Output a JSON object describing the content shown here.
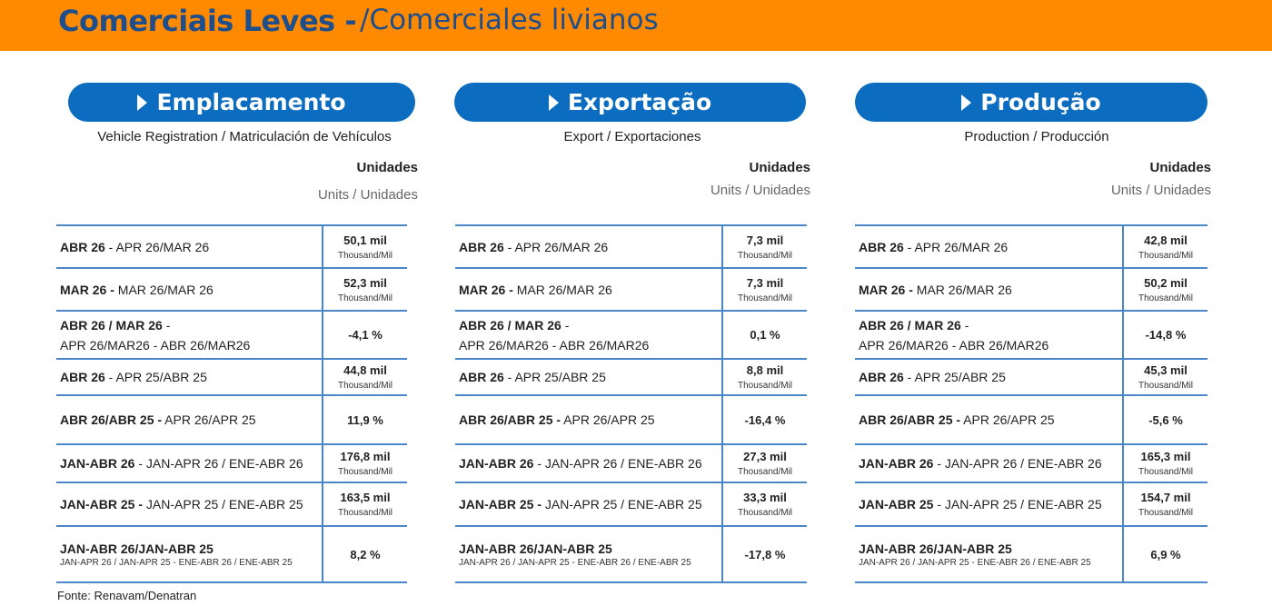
{
  "header": {
    "title_pt": "Comerciais Leves -",
    "title_es": "/Comerciales livianos"
  },
  "panels": [
    {
      "title": "Emplacamento",
      "subtitle": "Vehicle Registration / Matriculación de Vehículos",
      "units": "Unidades",
      "units_sub": "Units / Unidades",
      "rows": [
        {
          "label_bold": "ABR 26",
          "label_rest": " - APR 26/MAR 26",
          "label_line2": "",
          "label_small": "",
          "value": "50,1 mil",
          "unit": "Thousand/Mil"
        },
        {
          "label_bold": "MAR 26 -",
          "label_rest": " MAR 26/MAR 26",
          "label_line2": "",
          "label_small": "",
          "value": "52,3 mil",
          "unit": "Thousand/Mil"
        },
        {
          "label_bold": "ABR 26 / MAR 26",
          "label_rest": " -",
          "label_line2": "APR 26/MAR26 - ABR 26/MAR26",
          "label_small": "",
          "value": "-4,1 %",
          "unit": ""
        },
        {
          "label_bold": "ABR 26",
          "label_rest": " - APR 25/ABR 25",
          "label_line2": "",
          "label_small": "",
          "value": "44,8 mil",
          "unit": "Thousand/Mil"
        },
        {
          "label_bold": "ABR 26/ABR 25 -",
          "label_rest": " APR 26/APR 25",
          "label_line2": "",
          "label_small": "",
          "value": "11,9 %",
          "unit": ""
        },
        {
          "label_bold": "JAN-ABR 26",
          "label_rest": " - JAN-APR 26 / ENE-ABR 26",
          "label_line2": "",
          "label_small": "",
          "value": "176,8 mil",
          "unit": "Thousand/Mil"
        },
        {
          "label_bold": "JAN-ABR 25 -",
          "label_rest": " JAN-APR 25 / ENE-ABR 25",
          "label_line2": "",
          "label_small": "",
          "value": "163,5 mil",
          "unit": "Thousand/Mil"
        },
        {
          "label_bold": "JAN-ABR 26/JAN-ABR 25",
          "label_rest": "",
          "label_line2": "",
          "label_small": "JAN-APR 26 / JAN-APR 25 - ENE-ABR 26 / ENE-ABR 25",
          "value": "8,2 %",
          "unit": ""
        }
      ]
    },
    {
      "title": "Exportação",
      "subtitle": "Export / Exportaciones",
      "units": "Unidades",
      "units_sub": "Units / Unidades",
      "rows": [
        {
          "label_bold": "ABR 26",
          "label_rest": " - APR 26/MAR 26",
          "label_line2": "",
          "label_small": "",
          "value": "7,3 mil",
          "unit": "Thousand/Mil"
        },
        {
          "label_bold": "MAR 26 -",
          "label_rest": " MAR 26/MAR 26",
          "label_line2": "",
          "label_small": "",
          "value": "7,3 mil",
          "unit": "Thousand/Mil"
        },
        {
          "label_bold": "ABR 26 / MAR 26",
          "label_rest": " -",
          "label_line2": "APR 26/MAR26 - ABR 26/MAR26",
          "label_small": "",
          "value": "0,1 %",
          "unit": ""
        },
        {
          "label_bold": "ABR 26",
          "label_rest": " - APR 25/ABR 25",
          "label_line2": "",
          "label_small": "",
          "value": "8,8 mil",
          "unit": "Thousand/Mil"
        },
        {
          "label_bold": "ABR 26/ABR 25 -",
          "label_rest": " APR 26/APR 25",
          "label_line2": "",
          "label_small": "",
          "value": "-16,4 %",
          "unit": ""
        },
        {
          "label_bold": "JAN-ABR 26",
          "label_rest": " - JAN-APR 26 / ENE-ABR 26",
          "label_line2": "",
          "label_small": "",
          "value": "27,3 mil",
          "unit": "Thousand/Mil"
        },
        {
          "label_bold": "JAN-ABR 25 -",
          "label_rest": " JAN-APR 25 / ENE-ABR 25",
          "label_line2": "",
          "label_small": "",
          "value": "33,3 mil",
          "unit": "Thousand/Mil"
        },
        {
          "label_bold": "JAN-ABR 26/JAN-ABR 25",
          "label_rest": "",
          "label_line2": "",
          "label_small": "JAN-APR 26 / JAN-APR 25 - ENE-ABR 26 / ENE-ABR 25",
          "value": "-17,8 %",
          "unit": ""
        }
      ]
    },
    {
      "title": "Produção",
      "subtitle": "Production / Producción",
      "units": "Unidades",
      "units_sub": "Units / Unidades",
      "rows": [
        {
          "label_bold": "ABR 26",
          "label_rest": " - APR 26/MAR 26",
          "label_line2": "",
          "label_small": "",
          "value": "42,8 mil",
          "unit": "Thousand/Mil"
        },
        {
          "label_bold": "MAR 26 -",
          "label_rest": " MAR 26/MAR 26",
          "label_line2": "",
          "label_small": "",
          "value": "50,2 mil",
          "unit": "Thousand/Mil"
        },
        {
          "label_bold": "ABR 26 / MAR 26",
          "label_rest": " -",
          "label_line2": "APR 26/MAR26 - ABR 26/MAR26",
          "label_small": "",
          "value": "-14,8 %",
          "unit": ""
        },
        {
          "label_bold": "ABR 26",
          "label_rest": " - APR 25/ABR 25",
          "label_line2": "",
          "label_small": "",
          "value": "45,3 mil",
          "unit": "Thousand/Mil"
        },
        {
          "label_bold": "ABR 26/ABR 25 -",
          "label_rest": " APR 26/APR 25",
          "label_line2": "",
          "label_small": "",
          "value": "-5,6 %",
          "unit": ""
        },
        {
          "label_bold": "JAN-ABR 26",
          "label_rest": " - JAN-APR 26 / ENE-ABR 26",
          "label_line2": "",
          "label_small": "",
          "value": "165,3 mil",
          "unit": "Thousand/Mil"
        },
        {
          "label_bold": "JAN-ABR 25",
          "label_rest": " - JAN-APR 25 / ENE-ABR 25",
          "label_line2": "",
          "label_small": "",
          "value": "154,7 mil",
          "unit": "Thousand/Mil"
        },
        {
          "label_bold": "JAN-ABR 26/JAN-ABR 25",
          "label_rest": "",
          "label_line2": "",
          "label_small": "JAN-APR 26 / JAN-APR 25 - ENE-ABR 26 / ENE-ABR 25",
          "value": "6,9 %",
          "unit": ""
        }
      ]
    }
  ],
  "footer": "Fonte: Renavam/Denatran",
  "colors": {
    "banner": "#FF8A00",
    "title_text": "#1F4E8C",
    "pill": "#0B6CC0",
    "rule": "#4A86C8"
  }
}
